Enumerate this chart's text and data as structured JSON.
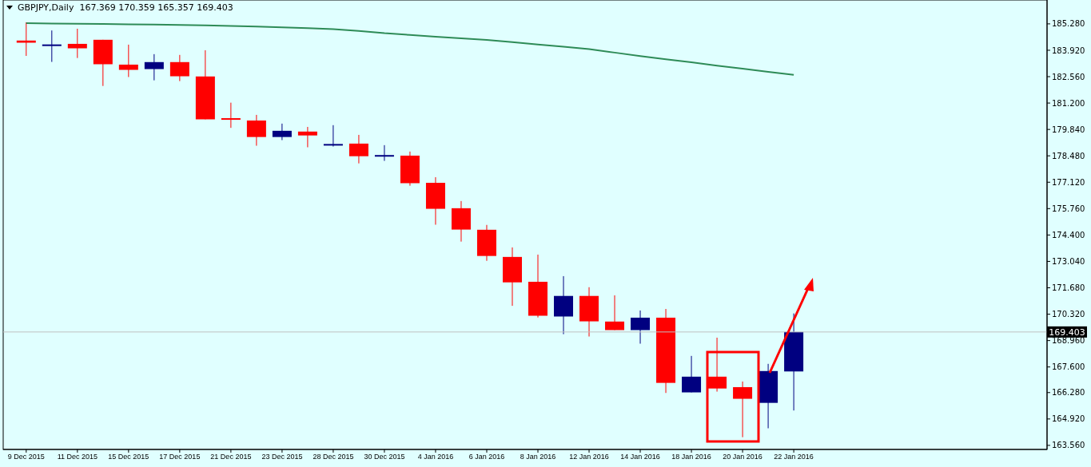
{
  "chart_data": {
    "type": "candlestick",
    "title": "GBPJPY,Daily  167.369 170.359 165.357 169.403",
    "categories": [
      "9 Dec 2015",
      null,
      "11 Dec 2015",
      null,
      "15 Dec 2015",
      null,
      "17 Dec 2015",
      null,
      "21 Dec 2015",
      null,
      "23 Dec 2015",
      null,
      "28 Dec 2015",
      null,
      "30 Dec 2015",
      null,
      "4 Jan 2016",
      null,
      "6 Jan 2016",
      null,
      "8 Jan 2016",
      null,
      "12 Jan 2016",
      null,
      "14 Jan 2016",
      null,
      "18 Jan 2016",
      null,
      "20 Jan 2016",
      null,
      "22 Jan 2016"
    ],
    "ohlc": [
      [
        184.42,
        185.36,
        183.63,
        184.31
      ],
      [
        184.19,
        184.94,
        183.32,
        184.22
      ],
      [
        184.25,
        185.03,
        183.52,
        184.02
      ],
      [
        184.46,
        184.46,
        182.08,
        183.2
      ],
      [
        183.18,
        184.21,
        182.54,
        182.91
      ],
      [
        182.95,
        183.72,
        182.37,
        183.31
      ],
      [
        183.31,
        183.68,
        182.33,
        182.58
      ],
      [
        182.57,
        183.92,
        180.36,
        180.36
      ],
      [
        180.42,
        181.22,
        179.92,
        180.39
      ],
      [
        180.3,
        180.59,
        179.0,
        179.45
      ],
      [
        179.45,
        180.14,
        179.29,
        179.77
      ],
      [
        179.73,
        179.97,
        178.92,
        179.53
      ],
      [
        179.06,
        180.06,
        178.96,
        179.09
      ],
      [
        179.11,
        179.56,
        178.09,
        178.46
      ],
      [
        178.49,
        179.03,
        178.22,
        178.52
      ],
      [
        178.49,
        178.7,
        176.94,
        177.07
      ],
      [
        177.09,
        177.38,
        174.93,
        175.75
      ],
      [
        175.78,
        176.15,
        174.06,
        174.68
      ],
      [
        174.67,
        174.92,
        173.07,
        173.32
      ],
      [
        173.27,
        173.76,
        170.75,
        171.96
      ],
      [
        171.99,
        173.39,
        170.15,
        170.24
      ],
      [
        170.2,
        172.28,
        169.29,
        171.26
      ],
      [
        171.26,
        171.71,
        169.17,
        169.95
      ],
      [
        169.94,
        171.29,
        169.5,
        169.5
      ],
      [
        169.5,
        170.51,
        168.8,
        170.14
      ],
      [
        170.14,
        170.59,
        166.26,
        166.78
      ],
      [
        166.29,
        168.17,
        166.29,
        167.1
      ],
      [
        167.1,
        169.11,
        166.33,
        166.49
      ],
      [
        166.56,
        166.85,
        163.98,
        165.96
      ],
      [
        165.75,
        167.76,
        164.44,
        167.39
      ],
      [
        167.369,
        170.359,
        165.357,
        169.403
      ]
    ],
    "colors": [
      "#ff0000",
      "#000080",
      "#ff0000",
      "#ff0000",
      "#ff0000",
      "#000080",
      "#ff0000",
      "#ff0000",
      "#ff0000",
      "#ff0000",
      "#000080",
      "#ff0000",
      "#000080",
      "#ff0000",
      "#000080",
      "#ff0000",
      "#ff0000",
      "#ff0000",
      "#ff0000",
      "#ff0000",
      "#ff0000",
      "#000080",
      "#ff0000",
      "#ff0000",
      "#000080",
      "#ff0000",
      "#000080",
      "#ff0000",
      "#ff0000",
      "#000080",
      "#000080"
    ],
    "series": [
      {
        "type": "line",
        "color": "#2e8b57",
        "values": [
          185.32,
          185.3,
          185.29,
          185.28,
          185.26,
          185.24,
          185.22,
          185.2,
          185.17,
          185.14,
          185.1,
          185.06,
          185.01,
          184.92,
          184.8,
          184.71,
          184.62,
          184.54,
          184.45,
          184.34,
          184.22,
          184.1,
          183.98,
          183.8,
          183.62,
          183.46,
          183.3,
          183.13,
          182.97,
          182.81,
          182.65
        ]
      }
    ],
    "ylim": [
      163.35,
      186.51
    ],
    "yticks": [
      {
        "value": 163.56,
        "label": "163.560"
      },
      {
        "value": 164.92,
        "label": "164.920"
      },
      {
        "value": 166.28,
        "label": "166.280"
      },
      {
        "value": 167.6,
        "label": "167.600"
      },
      {
        "value": 168.96,
        "label": "168.960"
      },
      {
        "value": 170.32,
        "label": "170.320"
      },
      {
        "value": 171.68,
        "label": "171.680"
      },
      {
        "value": 173.04,
        "label": "173.040"
      },
      {
        "value": 174.4,
        "label": "174.400"
      },
      {
        "value": 175.76,
        "label": "175.760"
      },
      {
        "value": 177.12,
        "label": "177.120"
      },
      {
        "value": 178.48,
        "label": "178.480"
      },
      {
        "value": 179.84,
        "label": "179.840"
      },
      {
        "value": 181.2,
        "label": "181.200"
      },
      {
        "value": 182.56,
        "label": "182.560"
      },
      {
        "value": 183.92,
        "label": "183.920"
      },
      {
        "value": 185.28,
        "label": "185.280"
      }
    ],
    "ref_lines": [
      {
        "axis": "y",
        "value": 169.403,
        "label": "169.403",
        "color": "#c0c0c0"
      }
    ],
    "grid": false,
    "legend": false
  }
}
